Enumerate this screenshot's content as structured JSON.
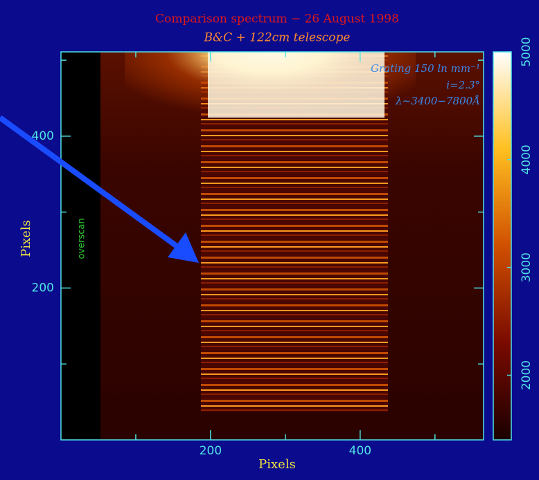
{
  "chart_data": {
    "type": "image",
    "title": "Comparison spectrum − 26 August 1998",
    "subtitle": "B&C + 122cm telescope",
    "annotations": [
      "Grating 150 ln mm⁻¹",
      "i=2.3°",
      "λ~3400−7800Å"
    ],
    "region_label": "overscan",
    "x_label": "Pixels",
    "y_label": "Pixels",
    "xlim": [
      0,
      565
    ],
    "ylim": [
      0,
      511
    ],
    "xticks": [
      200,
      400
    ],
    "yticks": [
      200,
      400
    ],
    "xminor_ticks": [
      100,
      300,
      500
    ],
    "yminor_ticks": [
      100,
      300,
      500
    ],
    "colorbar_lim": [
      1400,
      5000
    ],
    "colorbar_ticks": [
      2000,
      3000,
      4000,
      5000
    ]
  }
}
